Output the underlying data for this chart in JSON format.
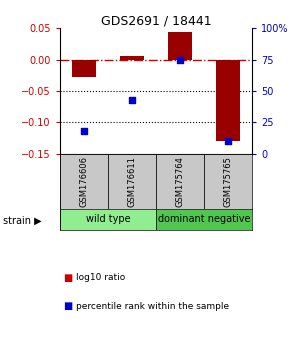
{
  "title": "GDS2691 / 18441",
  "samples": [
    "GSM176606",
    "GSM176611",
    "GSM175764",
    "GSM175765"
  ],
  "log10_ratio": [
    -0.028,
    0.006,
    0.044,
    -0.13
  ],
  "percentile_rank": [
    18,
    43,
    75,
    10
  ],
  "groups": [
    {
      "label": "wild type",
      "samples": [
        0,
        1
      ],
      "color": "#90ee90"
    },
    {
      "label": "dominant negative",
      "samples": [
        2,
        3
      ],
      "color": "#50c850"
    }
  ],
  "ylim_left": [
    -0.15,
    0.05
  ],
  "ylim_right": [
    0,
    100
  ],
  "yticks_left": [
    -0.15,
    -0.1,
    -0.05,
    0.0,
    0.05
  ],
  "yticks_right": [
    0,
    25,
    50,
    75,
    100
  ],
  "ytick_labels_right": [
    "0",
    "25",
    "50",
    "75",
    "100%"
  ],
  "bar_color": "#990000",
  "scatter_color": "#0000cc",
  "zero_line_color": "#cc0000",
  "dotted_line_color": "#000000",
  "bg_color": "#ffffff",
  "plot_bg": "#ffffff",
  "legend_items": [
    {
      "color": "#cc0000",
      "label": "log10 ratio"
    },
    {
      "color": "#0000cc",
      "label": "percentile rank within the sample"
    }
  ],
  "strain_label": "strain",
  "bar_width": 0.5
}
